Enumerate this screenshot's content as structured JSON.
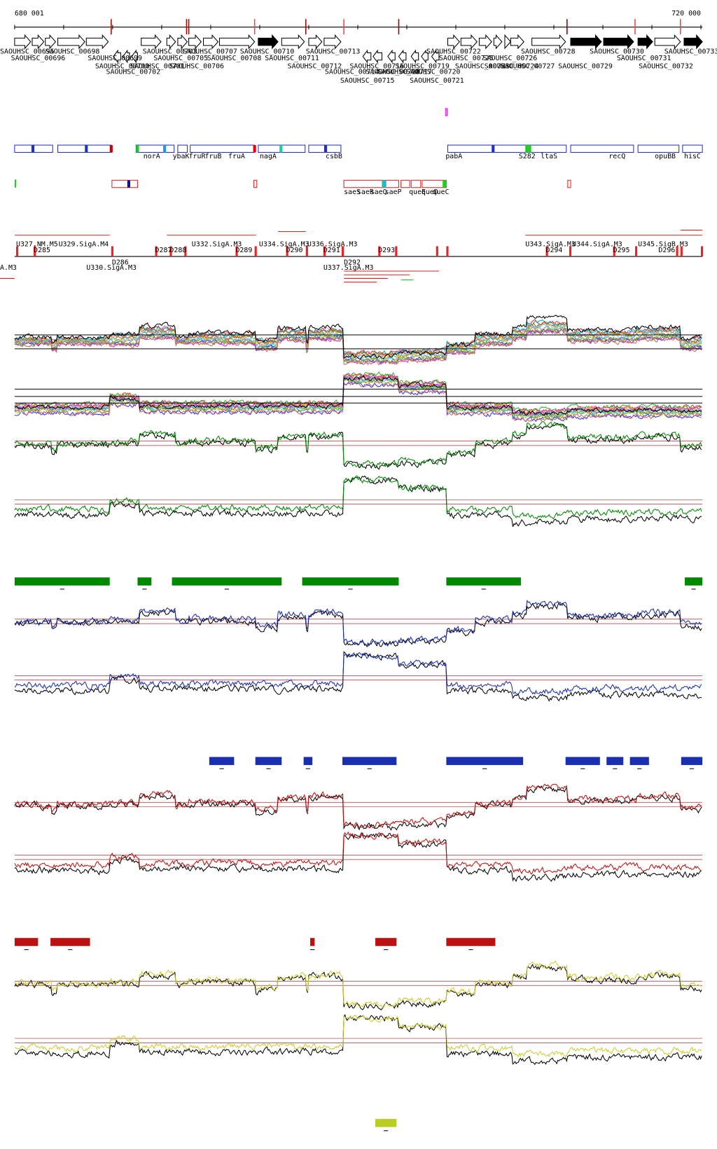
{
  "axis": {
    "start": "680 001",
    "end": "720 000"
  },
  "genes": [
    "SAOUHSC_00695",
    "SAOUHSC_00698",
    "SAOUHSC_00703",
    "SAOUHSC_00707",
    "SAOUHSC_00710",
    "SAOUHSC_00713",
    "SAOUHSC_00722",
    "SAOUHSC_00728",
    "SAOUHSC_00730",
    "SAOUHSC_00733",
    "SAOUHSC_00696",
    "SAOUHSC_00699",
    "SAOUHSC_00705",
    "SAOUHSC_00708",
    "SAOUHSC_00711",
    "SAOUHSC_00725",
    "SAOUHSC_00726",
    "SAOUHSC_00731",
    "SAOUHSC_00700",
    "SAOUHSC_00701",
    "SAOUHSC_00706",
    "SAOUHSC_00712",
    "SAOUHSC_00716",
    "SAOUHSC_00719",
    "SAOUHSC_00723",
    "SAOUHSC_00724",
    "SAOUHSC_00727",
    "SAOUHSC_00729",
    "SAOUHSC_00732",
    "SAOUHSC_00702",
    "SAOUHSC_00714",
    "SAOUHSC_00718",
    "SAOUHSC_00717",
    "SAOUHSC_00720",
    "SAOUHSC_00715",
    "SAOUHSC_00721"
  ],
  "gene_names": [
    "norA",
    "ybaK",
    "fruR",
    "fruB",
    "fruA",
    "nagA",
    "csbB",
    "pabA",
    "S282",
    "ltaS",
    "recQ",
    "opuBB",
    "hisC"
  ],
  "operon_names": [
    "saeS",
    "saeR",
    "saeQ",
    "saeP",
    "queE",
    "queD",
    "queC"
  ],
  "promoters": [
    "U327.NM.M5",
    "U329.SigA.M4",
    "U330.SigA.M3",
    "U332.SigA.M3",
    "U334.SigA.M3",
    "U336.SigA.M3",
    "U337.SigA.M3",
    "U343.SigA.M3",
    "U344.SigA.M3",
    "U345.SigB.M3",
    "D285",
    "D286",
    "D287",
    "D288",
    "D289",
    "D290",
    "D291",
    "D292",
    "D293",
    "D294",
    "D295",
    "D296",
    "A.M3"
  ]
}
